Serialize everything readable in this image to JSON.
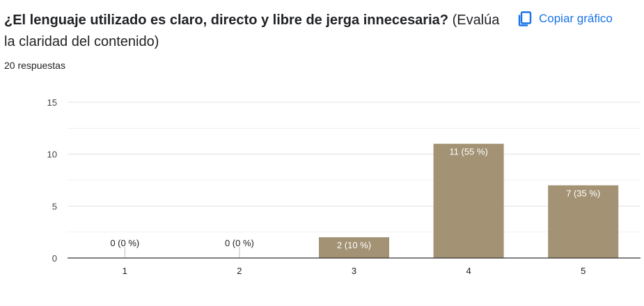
{
  "question": {
    "title_bold": "¿El lenguaje utilizado es claro, directo y libre de jerga innecesaria?",
    "title_note": "(Evalúa la claridad del contenido)",
    "responses": "20 respuestas"
  },
  "toolbar": {
    "copy_label": "Copiar gráfico",
    "copy_icon": "copy-icon"
  },
  "colors": {
    "bar": "#a39274",
    "accent": "#1a73e8"
  },
  "chart_data": {
    "type": "bar",
    "categories": [
      "1",
      "2",
      "3",
      "4",
      "5"
    ],
    "values": [
      0,
      0,
      2,
      11,
      7
    ],
    "data_labels": [
      "0 (0 %)",
      "0 (0 %)",
      "2 (10 %)",
      "11 (55 %)",
      "7 (35 %)"
    ],
    "yticks": [
      "0",
      "5",
      "10",
      "15"
    ],
    "ylim": [
      0,
      15
    ],
    "title": "",
    "xlabel": "",
    "ylabel": "",
    "grid": true,
    "legend": "none"
  }
}
